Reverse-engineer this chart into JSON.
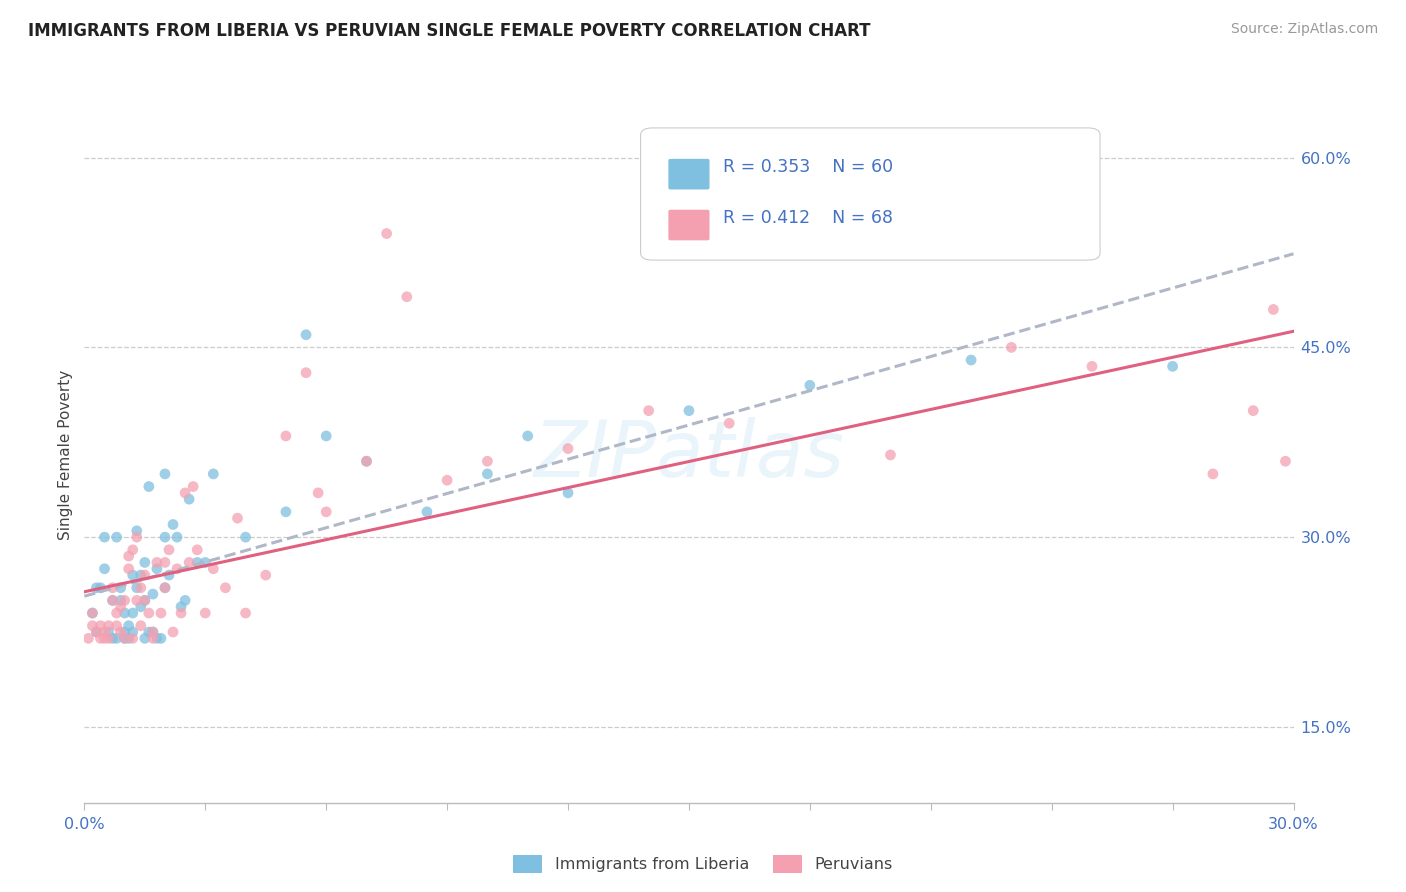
{
  "title": "IMMIGRANTS FROM LIBERIA VS PERUVIAN SINGLE FEMALE POVERTY CORRELATION CHART",
  "source": "Source: ZipAtlas.com",
  "ylabel": "Single Female Poverty",
  "yaxis_labels": [
    "15.0%",
    "30.0%",
    "45.0%",
    "60.0%"
  ],
  "yaxis_values": [
    15.0,
    30.0,
    45.0,
    60.0
  ],
  "xmin": 0.0,
  "xmax": 30.0,
  "ymin": 9.0,
  "ymax": 64.0,
  "legend_r1": "R = 0.353",
  "legend_n1": "N = 60",
  "legend_r2": "R = 0.412",
  "legend_n2": "N = 68",
  "color_blue": "#7fbfdf",
  "color_pink": "#f4a0b0",
  "scatter_blue": [
    [
      0.2,
      24.0
    ],
    [
      0.3,
      22.5
    ],
    [
      0.3,
      26.0
    ],
    [
      0.4,
      26.0
    ],
    [
      0.5,
      30.0
    ],
    [
      0.5,
      27.5
    ],
    [
      0.6,
      22.5
    ],
    [
      0.7,
      22.0
    ],
    [
      0.7,
      25.0
    ],
    [
      0.8,
      30.0
    ],
    [
      0.8,
      22.0
    ],
    [
      0.9,
      26.0
    ],
    [
      0.9,
      25.0
    ],
    [
      1.0,
      24.0
    ],
    [
      1.0,
      22.0
    ],
    [
      1.0,
      22.5
    ],
    [
      1.1,
      22.0
    ],
    [
      1.1,
      23.0
    ],
    [
      1.2,
      22.5
    ],
    [
      1.2,
      24.0
    ],
    [
      1.2,
      27.0
    ],
    [
      1.3,
      26.0
    ],
    [
      1.3,
      30.5
    ],
    [
      1.4,
      27.0
    ],
    [
      1.4,
      24.5
    ],
    [
      1.5,
      28.0
    ],
    [
      1.5,
      25.0
    ],
    [
      1.5,
      22.0
    ],
    [
      1.6,
      22.5
    ],
    [
      1.6,
      34.0
    ],
    [
      1.7,
      22.5
    ],
    [
      1.7,
      25.5
    ],
    [
      1.8,
      22.0
    ],
    [
      1.8,
      27.5
    ],
    [
      1.9,
      22.0
    ],
    [
      2.0,
      26.0
    ],
    [
      2.0,
      30.0
    ],
    [
      2.0,
      35.0
    ],
    [
      2.1,
      27.0
    ],
    [
      2.2,
      31.0
    ],
    [
      2.3,
      30.0
    ],
    [
      2.4,
      24.5
    ],
    [
      2.5,
      25.0
    ],
    [
      2.6,
      33.0
    ],
    [
      2.8,
      28.0
    ],
    [
      3.0,
      28.0
    ],
    [
      3.2,
      35.0
    ],
    [
      4.0,
      30.0
    ],
    [
      5.0,
      32.0
    ],
    [
      5.5,
      46.0
    ],
    [
      6.0,
      38.0
    ],
    [
      7.0,
      36.0
    ],
    [
      8.5,
      32.0
    ],
    [
      10.0,
      35.0
    ],
    [
      11.0,
      38.0
    ],
    [
      12.0,
      33.5
    ],
    [
      15.0,
      40.0
    ],
    [
      18.0,
      42.0
    ],
    [
      22.0,
      44.0
    ],
    [
      27.0,
      43.5
    ]
  ],
  "scatter_pink": [
    [
      0.1,
      22.0
    ],
    [
      0.2,
      24.0
    ],
    [
      0.2,
      23.0
    ],
    [
      0.3,
      22.5
    ],
    [
      0.4,
      23.0
    ],
    [
      0.4,
      22.0
    ],
    [
      0.5,
      22.5
    ],
    [
      0.5,
      22.0
    ],
    [
      0.6,
      23.0
    ],
    [
      0.6,
      22.0
    ],
    [
      0.7,
      25.0
    ],
    [
      0.7,
      26.0
    ],
    [
      0.8,
      23.0
    ],
    [
      0.8,
      24.0
    ],
    [
      0.9,
      24.5
    ],
    [
      0.9,
      22.5
    ],
    [
      1.0,
      25.0
    ],
    [
      1.0,
      22.0
    ],
    [
      1.1,
      27.5
    ],
    [
      1.1,
      28.5
    ],
    [
      1.2,
      22.0
    ],
    [
      1.2,
      29.0
    ],
    [
      1.3,
      30.0
    ],
    [
      1.3,
      25.0
    ],
    [
      1.4,
      26.0
    ],
    [
      1.4,
      23.0
    ],
    [
      1.5,
      27.0
    ],
    [
      1.5,
      25.0
    ],
    [
      1.6,
      24.0
    ],
    [
      1.7,
      22.0
    ],
    [
      1.7,
      22.5
    ],
    [
      1.8,
      28.0
    ],
    [
      1.9,
      24.0
    ],
    [
      2.0,
      26.0
    ],
    [
      2.0,
      28.0
    ],
    [
      2.1,
      29.0
    ],
    [
      2.2,
      22.5
    ],
    [
      2.3,
      27.5
    ],
    [
      2.4,
      24.0
    ],
    [
      2.5,
      33.5
    ],
    [
      2.6,
      28.0
    ],
    [
      2.7,
      34.0
    ],
    [
      2.8,
      29.0
    ],
    [
      3.0,
      24.0
    ],
    [
      3.2,
      27.5
    ],
    [
      3.5,
      26.0
    ],
    [
      3.8,
      31.5
    ],
    [
      4.0,
      24.0
    ],
    [
      4.5,
      27.0
    ],
    [
      5.0,
      38.0
    ],
    [
      5.5,
      43.0
    ],
    [
      5.8,
      33.5
    ],
    [
      6.0,
      32.0
    ],
    [
      7.0,
      36.0
    ],
    [
      7.5,
      54.0
    ],
    [
      8.0,
      49.0
    ],
    [
      9.0,
      34.5
    ],
    [
      10.0,
      36.0
    ],
    [
      12.0,
      37.0
    ],
    [
      14.0,
      40.0
    ],
    [
      16.0,
      39.0
    ],
    [
      20.0,
      36.5
    ],
    [
      23.0,
      45.0
    ],
    [
      25.0,
      43.5
    ],
    [
      28.0,
      35.0
    ],
    [
      29.0,
      40.0
    ],
    [
      29.5,
      48.0
    ],
    [
      29.8,
      36.0
    ]
  ]
}
